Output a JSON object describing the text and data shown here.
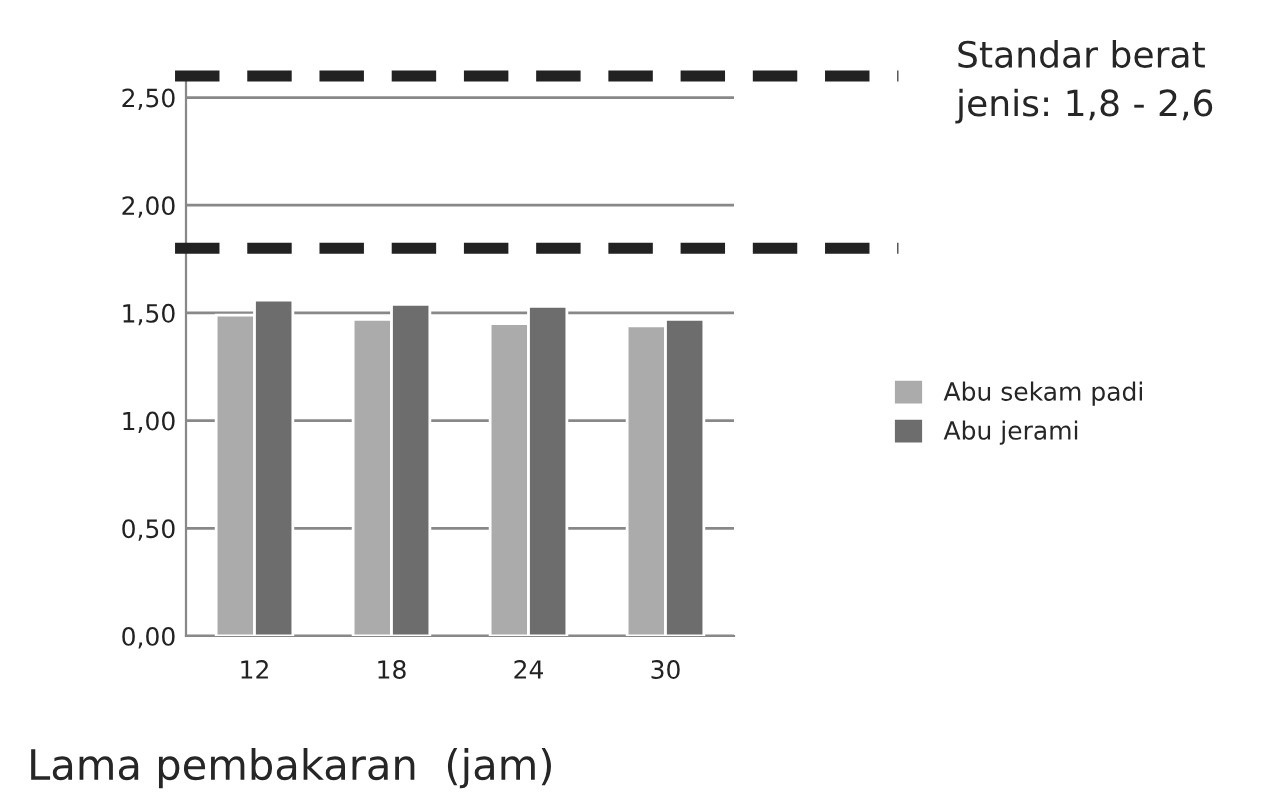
{
  "chart_data": {
    "type": "bar",
    "categories": [
      "12",
      "18",
      "24",
      "30"
    ],
    "series": [
      {
        "name": "Abu sekam padi",
        "color": "#ababab",
        "values": [
          1.49,
          1.47,
          1.45,
          1.44
        ]
      },
      {
        "name": "Abu jerami",
        "color": "#6d6d6d",
        "values": [
          1.56,
          1.54,
          1.53,
          1.47
        ]
      }
    ],
    "xlabel": "Lama pembakaran  (jam)",
    "ylim": [
      0,
      2.6
    ],
    "yticks": [
      {
        "value": 0,
        "label": "0,00"
      },
      {
        "value": 0.5,
        "label": "0,50"
      },
      {
        "value": 1.0,
        "label": "1,00"
      },
      {
        "value": 1.5,
        "label": "1,50"
      },
      {
        "value": 2.0,
        "label": "2,00"
      },
      {
        "value": 2.5,
        "label": "2,50"
      }
    ],
    "ref_lines": [
      {
        "axis": "y",
        "value": 2.6,
        "color": "#222222",
        "line_style": "dashed"
      },
      {
        "axis": "y",
        "value": 1.8,
        "color": "#222222",
        "line_style": "dashed"
      }
    ],
    "annotations": [
      "Standar berat jenis: 1,8 - 2,6"
    ],
    "grid": "y",
    "legend": "right"
  }
}
